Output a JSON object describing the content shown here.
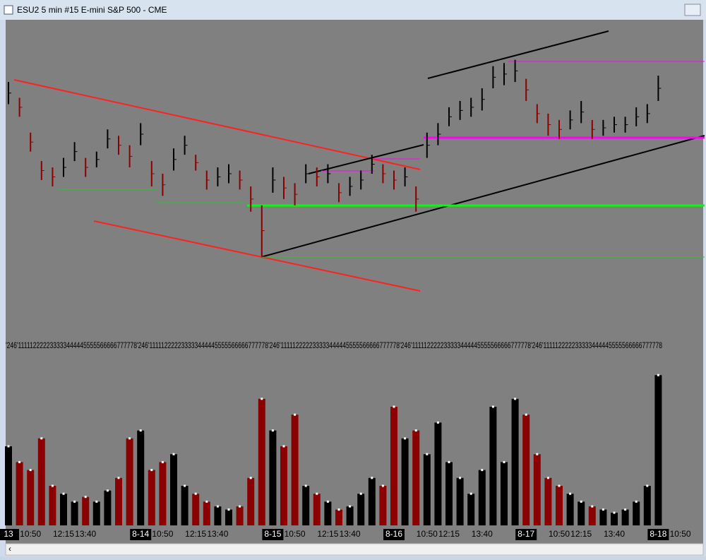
{
  "window": {
    "title": "ESU2  5 min   #15  E-mini S&P 500 - CME"
  },
  "chart_data": {
    "type": "ohlc",
    "tick_digits": "'246'111112222233333444445555566666777778'246'111112222233333444445555566666777778'246'111112222233333444445555566666777778'246'111112222233333444445555566666777778'246'111112222233333444445555566666777778",
    "categories": [
      "13",
      null,
      "10:50",
      null,
      null,
      "12:15",
      null,
      "13:40",
      null,
      null,
      null,
      null,
      "8-14",
      null,
      "10:50",
      null,
      null,
      "12:15",
      null,
      "13:40",
      null,
      null,
      null,
      null,
      "8-15",
      null,
      "10:50",
      null,
      null,
      "12:15",
      null,
      "13:40",
      null,
      null,
      null,
      "8-16",
      null,
      null,
      "10:50",
      null,
      "12:15",
      null,
      null,
      "13:40",
      null,
      null,
      null,
      "8-17",
      null,
      null,
      "10:50",
      null,
      "12:15",
      null,
      null,
      "13:40",
      null,
      null,
      null,
      "8-18",
      null,
      "10:50"
    ],
    "series": [
      {
        "name": "High",
        "values": [
          79,
          74,
          63,
          54,
          52,
          55,
          60,
          55,
          57,
          64,
          62,
          59,
          66,
          54,
          50,
          58,
          62,
          56,
          51,
          52,
          53,
          51,
          46,
          40,
          52,
          49,
          47,
          53,
          52,
          53,
          47,
          49,
          51,
          56,
          53,
          51,
          52,
          46,
          63,
          66,
          71,
          73,
          74,
          77,
          84,
          85,
          86,
          80,
          72,
          69,
          67,
          70,
          73,
          67,
          67,
          68,
          68,
          71,
          72,
          81,
          null,
          null
        ]
      },
      {
        "name": "Low",
        "values": [
          72,
          68,
          57,
          48,
          46,
          49,
          54,
          49,
          52,
          58,
          56,
          52,
          59,
          46,
          43,
          51,
          56,
          51,
          45,
          46,
          47,
          45,
          38,
          24,
          44,
          42,
          40,
          47,
          46,
          47,
          41,
          43,
          45,
          50,
          47,
          45,
          46,
          38,
          55,
          59,
          65,
          67,
          68,
          70,
          77,
          78,
          79,
          73,
          66,
          62,
          61,
          64,
          66,
          61,
          62,
          63,
          63,
          65,
          66,
          73,
          null,
          null
        ]
      },
      {
        "name": "Volume",
        "values": [
          50,
          40,
          35,
          55,
          25,
          20,
          15,
          18,
          15,
          22,
          30,
          55,
          60,
          35,
          40,
          45,
          25,
          20,
          15,
          12,
          10,
          12,
          30,
          80,
          60,
          50,
          70,
          25,
          20,
          15,
          10,
          12,
          20,
          30,
          25,
          75,
          55,
          60,
          45,
          65,
          40,
          30,
          20,
          35,
          75,
          40,
          80,
          70,
          45,
          30,
          25,
          20,
          15,
          12,
          10,
          8,
          10,
          15,
          25,
          95,
          null,
          null
        ]
      }
    ],
    "up_color": "#000000",
    "down_color": "#8b0000",
    "ylim": [
      0,
      100
    ],
    "volume_lim": [
      0,
      100
    ]
  }
}
